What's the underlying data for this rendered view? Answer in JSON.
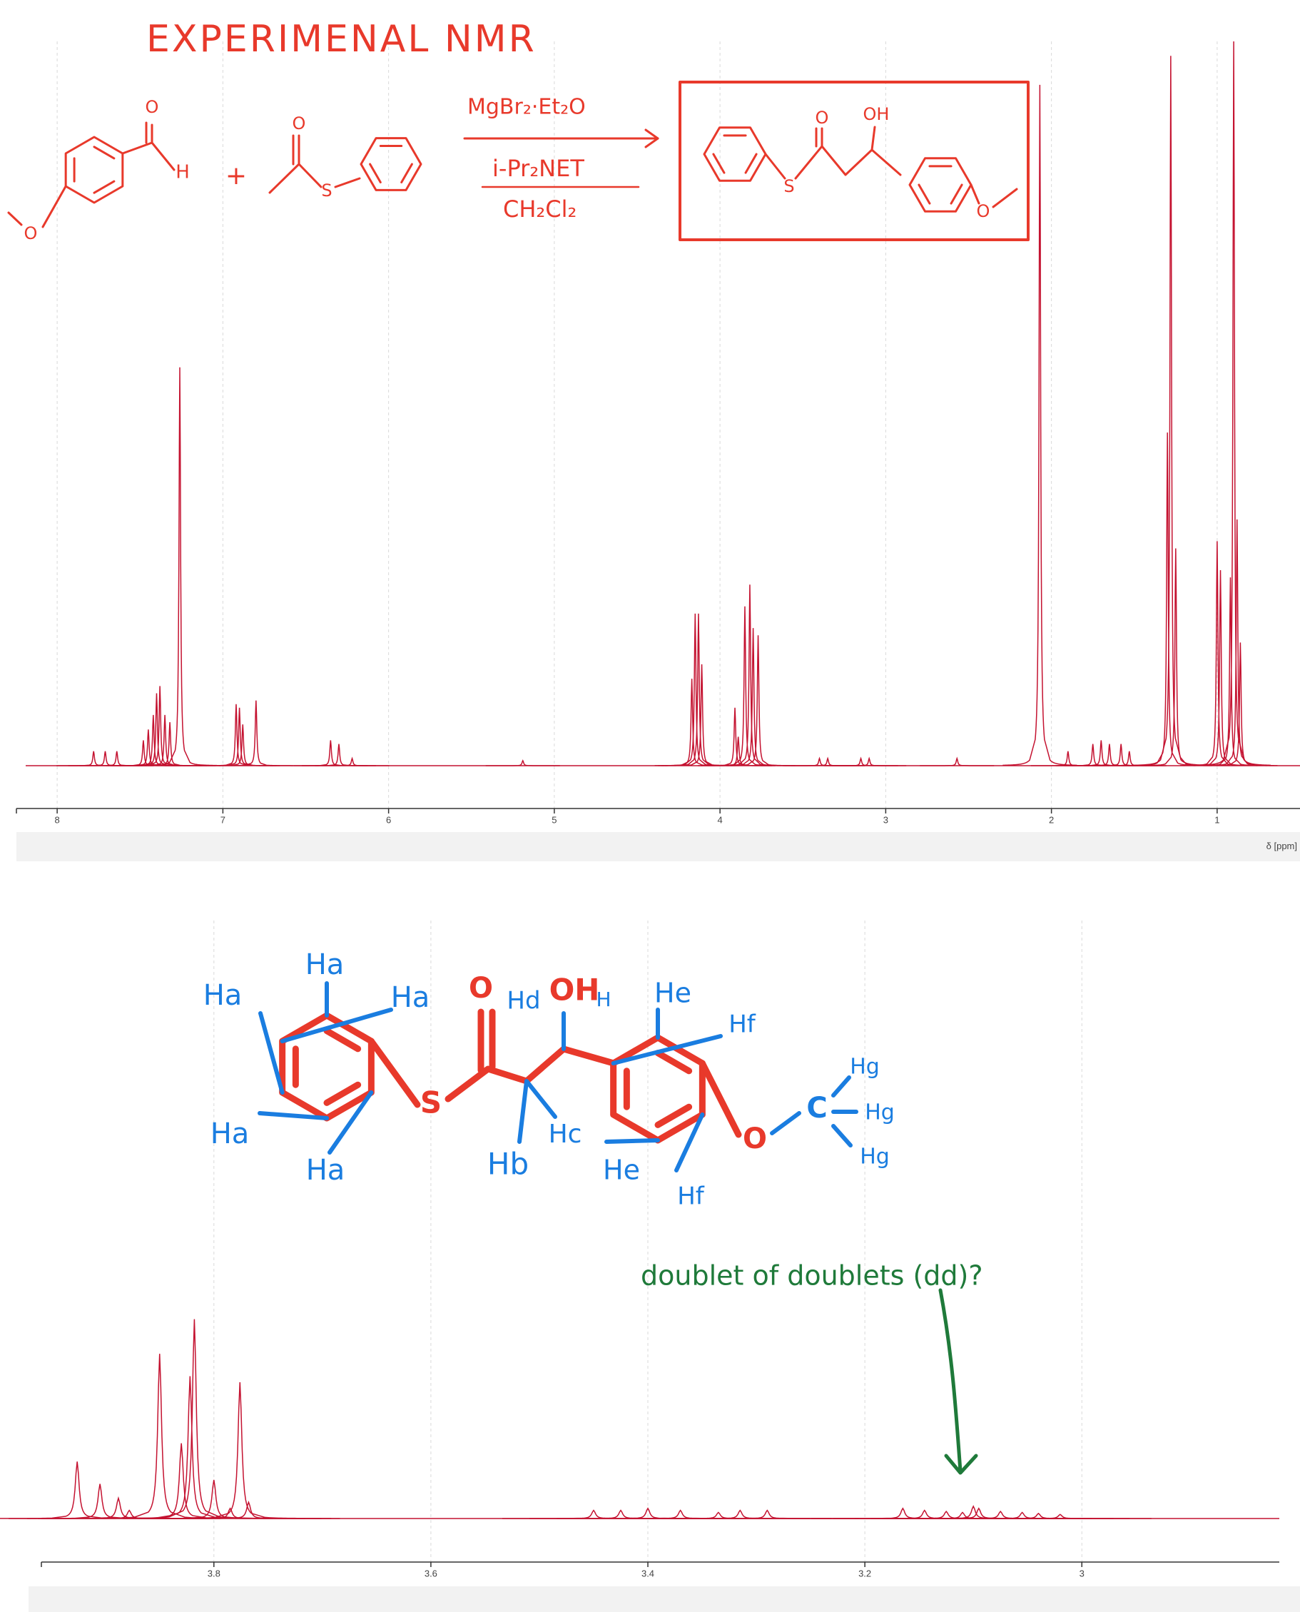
{
  "chart_data": [
    {
      "type": "spectrum",
      "x_label": "δ [ppm]",
      "color": "#c41230",
      "xlim": [
        8.19,
        0.5
      ],
      "ylim": [
        0,
        100
      ],
      "xticks": [
        8,
        7,
        6,
        5,
        4,
        3,
        2,
        1
      ],
      "grid": true,
      "x": [
        7.78,
        7.71,
        7.64,
        7.48,
        7.45,
        7.42,
        7.4,
        7.38,
        7.35,
        7.32,
        7.26,
        6.92,
        6.9,
        6.88,
        6.8,
        6.35,
        6.3,
        6.22,
        5.19,
        4.17,
        4.15,
        4.13,
        4.11,
        3.91,
        3.89,
        3.85,
        3.82,
        3.8,
        3.77,
        3.4,
        3.35,
        3.15,
        3.1,
        2.57,
        2.07,
        1.9,
        1.75,
        1.7,
        1.65,
        1.58,
        1.53,
        1.3,
        1.28,
        1.25,
        1.0,
        0.98,
        0.92,
        0.9,
        0.88,
        0.86
      ],
      "values": [
        2,
        2,
        2,
        3.5,
        5,
        7,
        10,
        11,
        7,
        6,
        55,
        8.5,
        8,
        5.7,
        9,
        3.5,
        3,
        1,
        0.7,
        12,
        21,
        21,
        14,
        8,
        4,
        22,
        25,
        19,
        18,
        1,
        1,
        1,
        1,
        1,
        94,
        2,
        3,
        3.5,
        3,
        3,
        2,
        46,
        98,
        30,
        31,
        27,
        26,
        100,
        34,
        17
      ]
    },
    {
      "type": "spectrum",
      "color": "#c41230",
      "xlim": [
        3.959,
        2.818
      ],
      "ylim": [
        0,
        100
      ],
      "xticks": [
        3.8,
        3.6,
        3.4,
        3.2,
        3
      ],
      "grid": true,
      "x": [
        3.926,
        3.905,
        3.888,
        3.878,
        3.85,
        3.83,
        3.822,
        3.818,
        3.8,
        3.785,
        3.776,
        3.768,
        3.45,
        3.425,
        3.4,
        3.37,
        3.335,
        3.315,
        3.29,
        3.165,
        3.145,
        3.125,
        3.11,
        3.1,
        3.095,
        3.075,
        3.055,
        3.04,
        3.02
      ],
      "values": [
        28,
        17,
        10,
        4,
        81,
        37,
        70,
        98,
        19,
        5,
        67,
        8,
        4,
        4,
        5,
        4,
        3,
        4,
        4,
        5,
        4,
        3.5,
        3,
        6,
        5,
        3.5,
        3,
        2.5,
        2
      ]
    }
  ],
  "annotations": {
    "heading": "EXPERIMENAL NMR",
    "reagents": [
      "MgBr₂·Et₂O",
      "i-Pr₂NET",
      "CH₂Cl₂"
    ],
    "reactant_labels": [
      "O",
      "H",
      "O",
      "+",
      "O",
      "S"
    ],
    "product_labels": [
      "S",
      "O",
      "OH",
      "O"
    ],
    "assignment_labels": [
      "Ha",
      "Ha",
      "Ha",
      "Ha",
      "Ha",
      "S",
      "O",
      "Hd",
      "OH",
      "H",
      "He",
      "Hf",
      "He",
      "Hf",
      "O",
      "C",
      "Hg",
      "Hg",
      "Hg",
      "Hb",
      "Hc"
    ],
    "note": "doublet of doublets (dd)?"
  }
}
